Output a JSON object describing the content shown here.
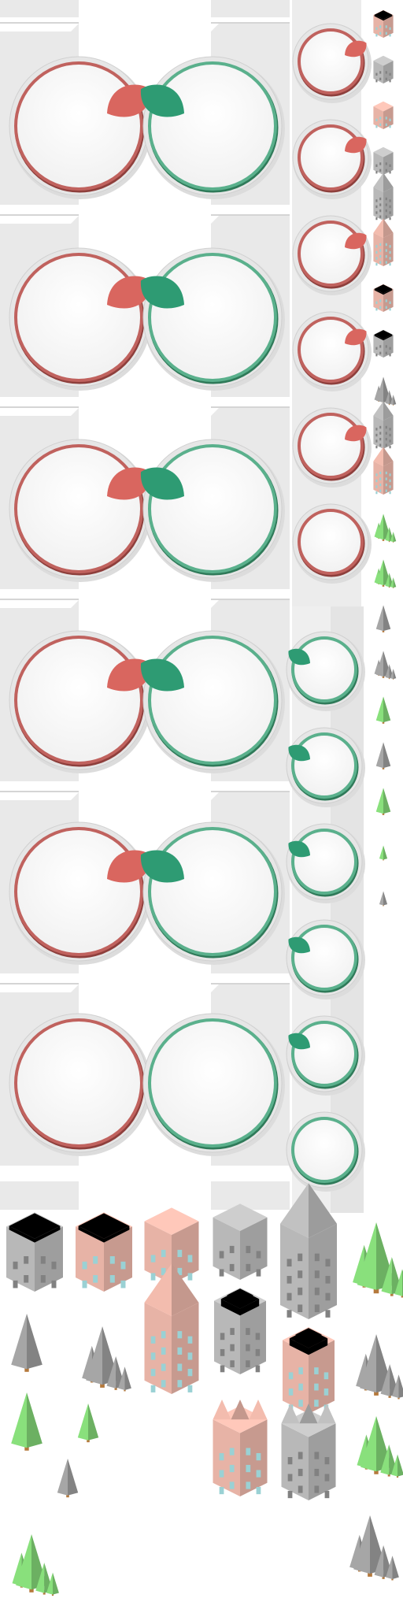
{
  "atlas": {
    "title": "",
    "colors": {
      "red_ring": "#c0625e",
      "red_ring_dark": "#8e3f3c",
      "red_leaf": "#d9665f",
      "green_ring": "#5ab08c",
      "green_ring_dark": "#2f7a59",
      "green_leaf": "#2e9b73",
      "panel_gray": "#e6e6e6",
      "brick": "#e7b3a6",
      "stone": "#b8b8b8",
      "tree_green": "#7fcf73",
      "tree_gray": "#9a9a9a"
    },
    "large_buttons": {
      "rows": 6,
      "left_variant": "red",
      "right_variant": "green",
      "rows_with_leaf": [
        true,
        true,
        true,
        true,
        true,
        false
      ]
    },
    "small_red_buttons": {
      "count": 6,
      "with_leaf": [
        true,
        true,
        true,
        true,
        true,
        false
      ]
    },
    "small_green_buttons": {
      "count": 6,
      "with_leaf": [
        true,
        true,
        true,
        true,
        true,
        false
      ]
    },
    "side_column_icons": [
      "brick-tall",
      "stone-block",
      "brick-block",
      "stone-block",
      "stone-tower",
      "brick-tower",
      "brick-house",
      "stone-house",
      "gray-trees",
      "stone-tower",
      "brick-tower",
      "green-trees",
      "green-trees",
      "gray-pine",
      "gray-trees",
      "green-pine",
      "gray-pine",
      "green-pine",
      "green-pine-small",
      "gray-pine-small"
    ],
    "building_sprites": [
      "stone-house",
      "brick-house",
      "brick-block",
      "stone-block",
      "stone-tower",
      "green-tree-cluster",
      "gray-pine",
      "gray-tree-cluster",
      "brick-tower",
      "stone-stepped-tower",
      "brick-stepped-tower",
      "gray-tree-cluster",
      "green-pine",
      "green-pine-single",
      "brick-sawtooth",
      "stone-sawtooth",
      "green-tree-cluster",
      "gray-pine-single",
      "green-tree-cluster",
      "gray-tree-cluster"
    ]
  }
}
